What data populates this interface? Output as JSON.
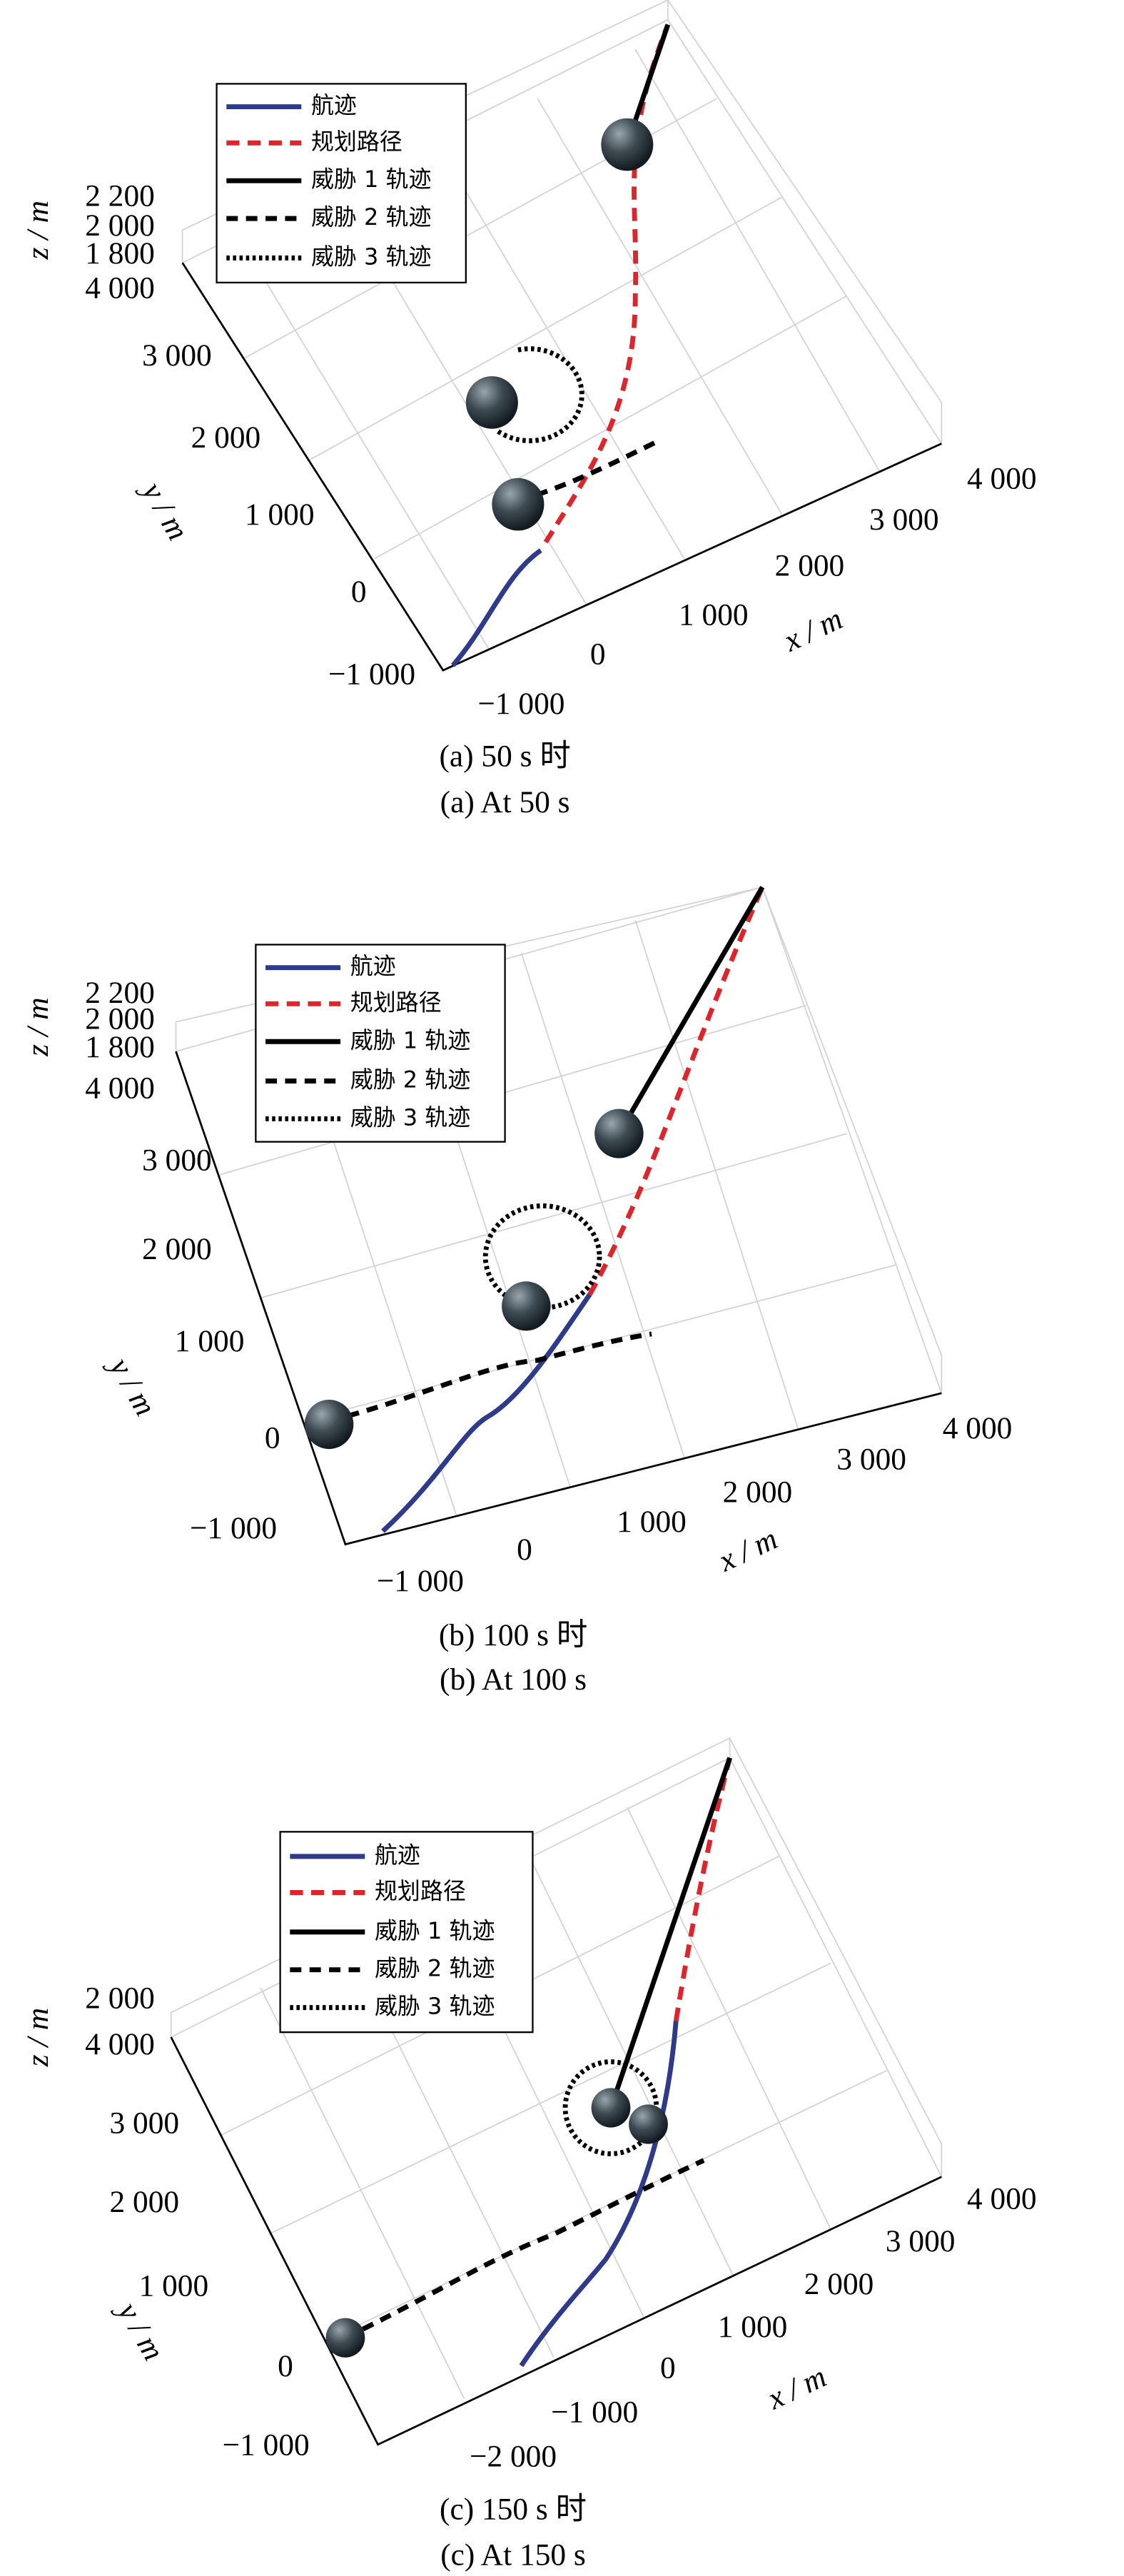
{
  "legend": [
    "航迹",
    "规划路径",
    "威胁 1 轨迹",
    "威胁 2 轨迹",
    "威胁 3 轨迹"
  ],
  "panels": [
    {
      "z_label": "z / m",
      "z_ticks": [
        "2 200",
        "2 000",
        "1 800",
        "4 000"
      ],
      "y_label": "y / m",
      "y_ticks": [
        "3 000",
        "2 000",
        "1 000",
        "0",
        "−1 000"
      ],
      "x_label": "x / m",
      "x_ticks": [
        "−1 000",
        "0",
        "1 000",
        "2 000",
        "3 000",
        "4 000"
      ],
      "caption_cn": "(a) 50 s 时",
      "caption_en": "(a) At 50 s"
    },
    {
      "z_label": "z / m",
      "z_ticks": [
        "2 200",
        "2 000",
        "1 800",
        "4 000"
      ],
      "y_label": "y / m",
      "y_ticks": [
        "3 000",
        "2 000",
        "1 000",
        "0",
        "−1 000"
      ],
      "x_label": "x / m",
      "x_ticks": [
        "−1 000",
        "0",
        "1 000",
        "2 000",
        "3 000",
        "4 000"
      ],
      "caption_cn": "(b) 100 s 时",
      "caption_en": "(b) At 100 s"
    },
    {
      "z_label": "z / m",
      "z_ticks": [
        "2 000",
        "4 000"
      ],
      "y_label": "y / m",
      "y_ticks": [
        "3 000",
        "2 000",
        "1 000",
        "0",
        "−1 000"
      ],
      "x_label": "x / m",
      "x_ticks": [
        "−2 000",
        "−1 000",
        "0",
        "1 000",
        "2 000",
        "3 000",
        "4 000"
      ],
      "caption_cn": "(c) 150 s 时",
      "caption_en": "(c) At 150 s"
    }
  ]
}
